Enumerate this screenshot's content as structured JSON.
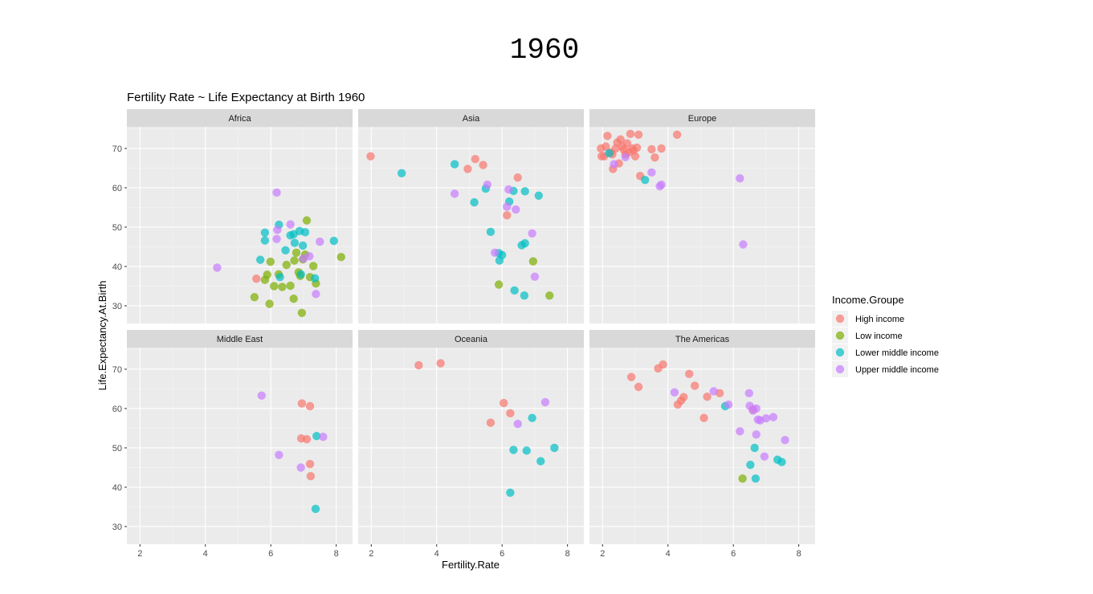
{
  "page_title": "1960",
  "chart_data": {
    "type": "scatter",
    "title": "Fertility Rate ~ Life Expectancy at Birth 1960",
    "xlabel": "Fertility.Rate",
    "ylabel": "Life.Expectancy.At.Birth",
    "xlim": [
      1.6,
      8.5
    ],
    "ylim": [
      25.5,
      75.5
    ],
    "x_ticks": [
      2,
      4,
      6,
      8
    ],
    "y_ticks": [
      30,
      40,
      50,
      60,
      70
    ],
    "grid": true,
    "legend_position": "right",
    "legend": {
      "title": "Income.Groupe",
      "entries": [
        {
          "name": "High income",
          "color": "#F8766D"
        },
        {
          "name": "Low income",
          "color": "#7CAE00"
        },
        {
          "name": "Lower middle income",
          "color": "#00BFC4"
        },
        {
          "name": "Upper middle income",
          "color": "#C77CFF"
        }
      ]
    },
    "facets": [
      {
        "name": "Africa",
        "points": [
          [
            5.56,
            36.9,
            "High income"
          ],
          [
            5.5,
            32.2,
            "Low income"
          ],
          [
            5.82,
            36.6,
            "Low income"
          ],
          [
            5.89,
            37.9,
            "Low income"
          ],
          [
            5.99,
            41.2,
            "Low income"
          ],
          [
            5.96,
            30.5,
            "Low income"
          ],
          [
            6.1,
            35.0,
            "Low income"
          ],
          [
            6.24,
            38.0,
            "Low income"
          ],
          [
            6.35,
            34.8,
            "Low income"
          ],
          [
            6.48,
            40.4,
            "Low income"
          ],
          [
            6.6,
            35.1,
            "Low income"
          ],
          [
            6.7,
            31.8,
            "Low income"
          ],
          [
            6.72,
            41.5,
            "Low income"
          ],
          [
            6.78,
            43.5,
            "Low income"
          ],
          [
            6.9,
            37.6,
            "Low income"
          ],
          [
            6.95,
            28.2,
            "Low income"
          ],
          [
            6.98,
            41.8,
            "Low income"
          ],
          [
            7.05,
            43.0,
            "Low income"
          ],
          [
            7.1,
            51.7,
            "Low income"
          ],
          [
            7.2,
            37.3,
            "Low income"
          ],
          [
            7.3,
            40.1,
            "Low income"
          ],
          [
            7.38,
            35.7,
            "Low income"
          ],
          [
            8.15,
            42.4,
            "Low income"
          ],
          [
            6.85,
            38.5,
            "Low income"
          ],
          [
            5.68,
            41.7,
            "Lower middle income"
          ],
          [
            5.82,
            48.6,
            "Lower middle income"
          ],
          [
            5.82,
            46.6,
            "Lower middle income"
          ],
          [
            6.25,
            50.6,
            "Lower middle income"
          ],
          [
            6.28,
            37.3,
            "Lower middle income"
          ],
          [
            6.45,
            44.1,
            "Lower middle income"
          ],
          [
            6.6,
            47.9,
            "Lower middle income"
          ],
          [
            6.7,
            48.2,
            "Lower middle income"
          ],
          [
            6.73,
            46.0,
            "Lower middle income"
          ],
          [
            6.88,
            49.0,
            "Lower middle income"
          ],
          [
            6.98,
            45.3,
            "Lower middle income"
          ],
          [
            7.05,
            48.7,
            "Lower middle income"
          ],
          [
            7.35,
            37.0,
            "Lower middle income"
          ],
          [
            7.93,
            46.5,
            "Lower middle income"
          ],
          [
            6.92,
            38.0,
            "Lower middle income"
          ],
          [
            4.36,
            39.7,
            "Upper middle income"
          ],
          [
            6.18,
            58.8,
            "Upper middle income"
          ],
          [
            6.18,
            47.0,
            "Upper middle income"
          ],
          [
            6.2,
            49.3,
            "Upper middle income"
          ],
          [
            6.6,
            50.7,
            "Upper middle income"
          ],
          [
            7.0,
            42.0,
            "Upper middle income"
          ],
          [
            7.18,
            42.6,
            "Upper middle income"
          ],
          [
            7.38,
            33.0,
            "Upper middle income"
          ],
          [
            7.5,
            46.3,
            "Upper middle income"
          ]
        ]
      },
      {
        "name": "Asia",
        "points": [
          [
            1.98,
            68.0,
            "High income"
          ],
          [
            4.95,
            64.8,
            "High income"
          ],
          [
            5.18,
            67.3,
            "High income"
          ],
          [
            5.42,
            65.8,
            "High income"
          ],
          [
            6.15,
            53.0,
            "High income"
          ],
          [
            6.48,
            62.6,
            "High income"
          ],
          [
            5.9,
            35.4,
            "Low income"
          ],
          [
            6.95,
            41.3,
            "Low income"
          ],
          [
            7.45,
            32.6,
            "Low income"
          ],
          [
            2.93,
            63.7,
            "Lower middle income"
          ],
          [
            4.55,
            66.0,
            "Lower middle income"
          ],
          [
            5.15,
            56.3,
            "Lower middle income"
          ],
          [
            5.5,
            59.8,
            "Lower middle income"
          ],
          [
            5.65,
            48.8,
            "Lower middle income"
          ],
          [
            5.9,
            43.4,
            "Lower middle income"
          ],
          [
            5.92,
            41.5,
            "Lower middle income"
          ],
          [
            6.0,
            42.9,
            "Lower middle income"
          ],
          [
            6.22,
            56.5,
            "Lower middle income"
          ],
          [
            6.35,
            59.2,
            "Lower middle income"
          ],
          [
            6.38,
            33.9,
            "Lower middle income"
          ],
          [
            6.6,
            45.4,
            "Lower middle income"
          ],
          [
            6.7,
            59.1,
            "Lower middle income"
          ],
          [
            6.7,
            45.9,
            "Lower middle income"
          ],
          [
            6.68,
            32.6,
            "Lower middle income"
          ],
          [
            7.12,
            58.0,
            "Lower middle income"
          ],
          [
            4.55,
            58.5,
            "Upper middle income"
          ],
          [
            5.55,
            60.8,
            "Upper middle income"
          ],
          [
            5.78,
            43.5,
            "Upper middle income"
          ],
          [
            6.15,
            55.2,
            "Upper middle income"
          ],
          [
            6.2,
            59.6,
            "Upper middle income"
          ],
          [
            6.42,
            54.5,
            "Upper middle income"
          ],
          [
            6.92,
            48.4,
            "Upper middle income"
          ],
          [
            7.0,
            37.4,
            "Upper middle income"
          ]
        ]
      },
      {
        "name": "Europe",
        "points": [
          [
            1.95,
            70.0,
            "High income"
          ],
          [
            1.97,
            68.0,
            "High income"
          ],
          [
            2.05,
            68.0,
            "High income"
          ],
          [
            2.1,
            70.5,
            "High income"
          ],
          [
            2.15,
            73.2,
            "High income"
          ],
          [
            2.25,
            69.0,
            "High income"
          ],
          [
            2.3,
            68.5,
            "High income"
          ],
          [
            2.32,
            64.8,
            "High income"
          ],
          [
            2.4,
            70.0,
            "High income"
          ],
          [
            2.45,
            71.5,
            "High income"
          ],
          [
            2.5,
            66.2,
            "High income"
          ],
          [
            2.55,
            72.3,
            "High income"
          ],
          [
            2.6,
            70.5,
            "High income"
          ],
          [
            2.65,
            69.7,
            "High income"
          ],
          [
            2.7,
            68.5,
            "High income"
          ],
          [
            2.75,
            71.3,
            "High income"
          ],
          [
            2.8,
            69.0,
            "High income"
          ],
          [
            2.85,
            73.7,
            "High income"
          ],
          [
            2.9,
            70.0,
            "High income"
          ],
          [
            2.95,
            69.5,
            "High income"
          ],
          [
            3.0,
            68.0,
            "High income"
          ],
          [
            3.05,
            70.2,
            "High income"
          ],
          [
            3.1,
            73.5,
            "High income"
          ],
          [
            3.15,
            63.0,
            "High income"
          ],
          [
            3.5,
            69.8,
            "High income"
          ],
          [
            3.6,
            67.7,
            "High income"
          ],
          [
            3.8,
            70.0,
            "High income"
          ],
          [
            4.28,
            73.5,
            "High income"
          ],
          [
            2.2,
            68.8,
            "Lower middle income"
          ],
          [
            3.3,
            62.0,
            "Lower middle income"
          ],
          [
            2.35,
            66.0,
            "Upper middle income"
          ],
          [
            2.7,
            67.8,
            "Upper middle income"
          ],
          [
            3.5,
            63.9,
            "Upper middle income"
          ],
          [
            3.75,
            60.4,
            "Upper middle income"
          ],
          [
            3.8,
            60.8,
            "Upper middle income"
          ],
          [
            6.2,
            62.4,
            "Upper middle income"
          ],
          [
            6.3,
            45.6,
            "Upper middle income"
          ]
        ]
      },
      {
        "name": "Middle East",
        "points": [
          [
            6.95,
            61.3,
            "High income"
          ],
          [
            7.2,
            60.6,
            "High income"
          ],
          [
            6.93,
            52.4,
            "High income"
          ],
          [
            7.1,
            52.2,
            "High income"
          ],
          [
            7.2,
            45.9,
            "High income"
          ],
          [
            7.22,
            42.8,
            "High income"
          ],
          [
            7.4,
            53.0,
            "Lower middle income"
          ],
          [
            7.37,
            34.5,
            "Lower middle income"
          ],
          [
            5.72,
            63.3,
            "Upper middle income"
          ],
          [
            6.25,
            48.2,
            "Upper middle income"
          ],
          [
            6.92,
            45.0,
            "Upper middle income"
          ],
          [
            7.6,
            52.8,
            "Upper middle income"
          ]
        ]
      },
      {
        "name": "Oceania",
        "points": [
          [
            3.45,
            71.0,
            "High income"
          ],
          [
            4.12,
            71.5,
            "High income"
          ],
          [
            5.65,
            56.4,
            "High income"
          ],
          [
            6.05,
            61.4,
            "High income"
          ],
          [
            6.25,
            58.8,
            "High income"
          ],
          [
            6.25,
            38.6,
            "Lower middle income"
          ],
          [
            6.35,
            49.5,
            "Lower middle income"
          ],
          [
            6.75,
            49.3,
            "Lower middle income"
          ],
          [
            6.92,
            57.6,
            "Lower middle income"
          ],
          [
            7.18,
            46.6,
            "Lower middle income"
          ],
          [
            7.6,
            50.0,
            "Lower middle income"
          ],
          [
            6.48,
            56.1,
            "Upper middle income"
          ],
          [
            7.32,
            61.6,
            "Upper middle income"
          ]
        ]
      },
      {
        "name": "The Americas",
        "points": [
          [
            2.88,
            68.0,
            "High income"
          ],
          [
            3.1,
            65.5,
            "High income"
          ],
          [
            3.7,
            70.2,
            "High income"
          ],
          [
            3.85,
            71.2,
            "High income"
          ],
          [
            4.3,
            61.0,
            "High income"
          ],
          [
            4.4,
            62.0,
            "High income"
          ],
          [
            4.48,
            62.9,
            "High income"
          ],
          [
            4.65,
            68.8,
            "High income"
          ],
          [
            4.82,
            65.8,
            "High income"
          ],
          [
            5.1,
            57.6,
            "High income"
          ],
          [
            5.2,
            63.0,
            "High income"
          ],
          [
            5.58,
            63.9,
            "High income"
          ],
          [
            6.6,
            59.8,
            "High income"
          ],
          [
            6.28,
            42.2,
            "Low income"
          ],
          [
            5.75,
            60.6,
            "Lower middle income"
          ],
          [
            6.52,
            45.7,
            "Lower middle income"
          ],
          [
            6.65,
            50.0,
            "Lower middle income"
          ],
          [
            6.68,
            42.2,
            "Lower middle income"
          ],
          [
            7.35,
            47.0,
            "Lower middle income"
          ],
          [
            7.48,
            46.4,
            "Lower middle income"
          ],
          [
            4.2,
            64.1,
            "Upper middle income"
          ],
          [
            5.4,
            64.4,
            "Upper middle income"
          ],
          [
            5.85,
            61.0,
            "Upper middle income"
          ],
          [
            6.2,
            54.2,
            "Upper middle income"
          ],
          [
            6.48,
            63.9,
            "Upper middle income"
          ],
          [
            6.5,
            60.7,
            "Upper middle income"
          ],
          [
            6.6,
            59.5,
            "Upper middle income"
          ],
          [
            6.7,
            60.0,
            "Upper middle income"
          ],
          [
            6.7,
            53.4,
            "Upper middle income"
          ],
          [
            6.75,
            57.2,
            "Upper middle income"
          ],
          [
            6.82,
            57.0,
            "Upper middle income"
          ],
          [
            6.95,
            47.8,
            "Upper middle income"
          ],
          [
            7.0,
            57.5,
            "Upper middle income"
          ],
          [
            7.22,
            57.8,
            "Upper middle income"
          ],
          [
            7.58,
            52.0,
            "Upper middle income"
          ]
        ]
      }
    ]
  }
}
